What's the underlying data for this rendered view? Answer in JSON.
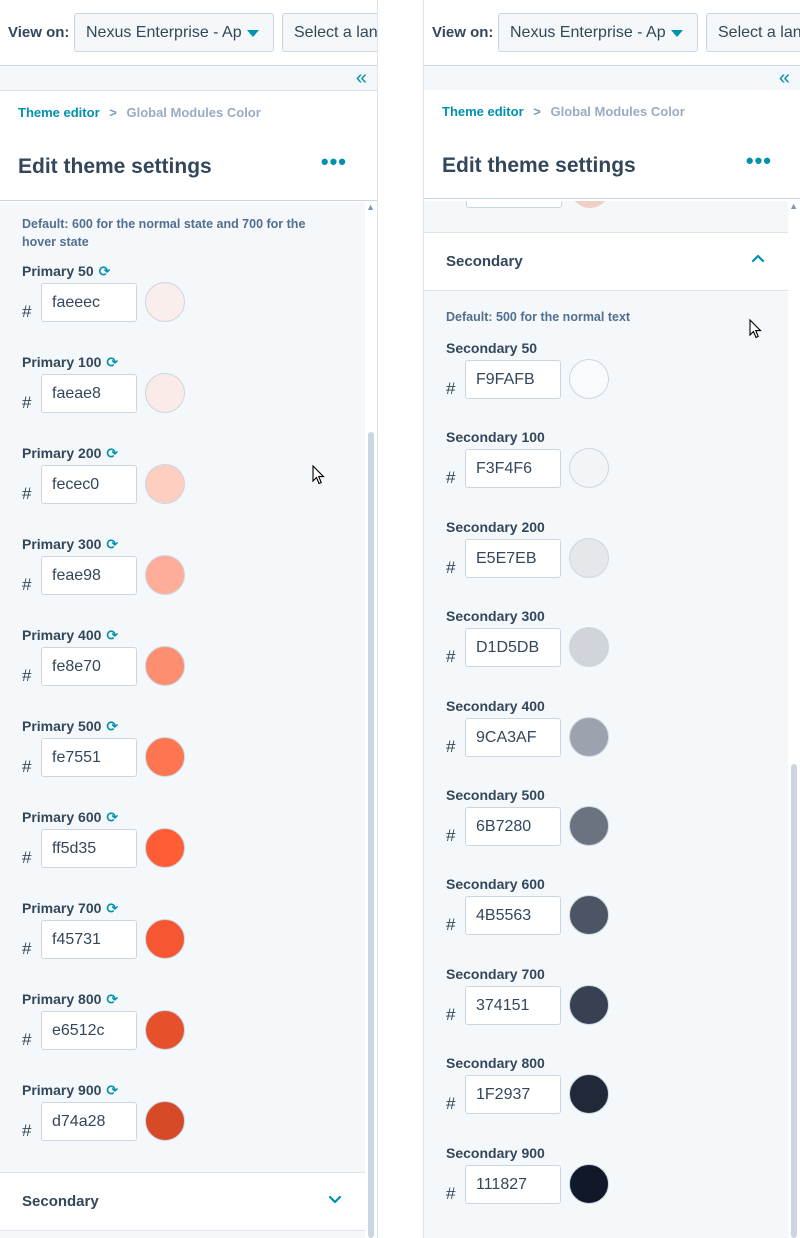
{
  "left": {
    "topbar": {
      "view_label": "View on:",
      "view_value": "Nexus Enterprise - Ap",
      "lang_placeholder": "Select a lan"
    },
    "breadcrumb": {
      "link": "Theme editor",
      "separator": ">",
      "current": "Global Modules Color"
    },
    "title": "Edit theme settings",
    "more": "•••",
    "hint": "Default: 600 for the normal state and 700 for the hover state",
    "colors": [
      {
        "label": "Primary 50",
        "hex": "faeeec",
        "swatch": "#faeeec"
      },
      {
        "label": "Primary 100",
        "hex": "faeae8",
        "swatch": "#faeae8"
      },
      {
        "label": "Primary 200",
        "hex": "fecec0",
        "swatch": "#fecec0"
      },
      {
        "label": "Primary 300",
        "hex": "feae98",
        "swatch": "#feae98"
      },
      {
        "label": "Primary 400",
        "hex": "fe8e70",
        "swatch": "#fe8e70"
      },
      {
        "label": "Primary 500",
        "hex": "fe7551",
        "swatch": "#fe7551"
      },
      {
        "label": "Primary 600",
        "hex": "ff5d35",
        "swatch": "#ff5d35"
      },
      {
        "label": "Primary 700",
        "hex": "f45731",
        "swatch": "#f45731"
      },
      {
        "label": "Primary 800",
        "hex": "e6512c",
        "swatch": "#e6512c"
      },
      {
        "label": "Primary 900",
        "hex": "d74a28",
        "swatch": "#d74a28"
      }
    ],
    "accordion": {
      "title": "Secondary",
      "state": "collapsed"
    }
  },
  "right": {
    "topbar": {
      "view_label": "View on:",
      "view_value": "Nexus Enterprise - Ap",
      "lang_placeholder": "Select a lan"
    },
    "breadcrumb": {
      "link": "Theme editor",
      "separator": ">",
      "current": "Global Modules Color"
    },
    "title": "Edit theme settings",
    "more": "•••",
    "accordion": {
      "title": "Secondary",
      "state": "expanded"
    },
    "hint": "Default: 500 for the normal text",
    "colors": [
      {
        "label": "Secondary 50",
        "hex": "F9FAFB",
        "swatch": "#F9FAFB"
      },
      {
        "label": "Secondary 100",
        "hex": "F3F4F6",
        "swatch": "#F3F4F6"
      },
      {
        "label": "Secondary 200",
        "hex": "E5E7EB",
        "swatch": "#E5E7EB"
      },
      {
        "label": "Secondary 300",
        "hex": "D1D5DB",
        "swatch": "#D1D5DB"
      },
      {
        "label": "Secondary 400",
        "hex": "9CA3AF",
        "swatch": "#9CA3AF"
      },
      {
        "label": "Secondary 500",
        "hex": "6B7280",
        "swatch": "#6B7280"
      },
      {
        "label": "Secondary 600",
        "hex": "4B5563",
        "swatch": "#4B5563"
      },
      {
        "label": "Secondary 700",
        "hex": "374151",
        "swatch": "#374151"
      },
      {
        "label": "Secondary 800",
        "hex": "1F2937",
        "swatch": "#1F2937"
      },
      {
        "label": "Secondary 900",
        "hex": "111827",
        "swatch": "#111827"
      }
    ]
  },
  "hash_symbol": "#",
  "accent_color": "#0091ae"
}
